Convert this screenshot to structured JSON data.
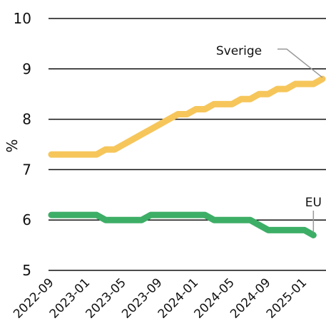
{
  "chart_data": {
    "type": "line",
    "y_label": "%",
    "categories": [
      "2022-09",
      null,
      null,
      null,
      "2023-01",
      null,
      null,
      null,
      "2023-05",
      null,
      null,
      null,
      "2023-09",
      null,
      null,
      null,
      "2024-01",
      null,
      null,
      null,
      "2024-05",
      null,
      null,
      null,
      "2024-09",
      null,
      null,
      null,
      "2025-01",
      null,
      null
    ],
    "series": [
      {
        "name": "Sverige",
        "color": "#f6c65b",
        "values": [
          7.3,
          7.3,
          7.3,
          7.3,
          7.3,
          7.3,
          7.4,
          7.4,
          7.5,
          7.6,
          7.7,
          7.8,
          7.9,
          8.0,
          8.1,
          8.1,
          8.2,
          8.2,
          8.3,
          8.3,
          8.3,
          8.4,
          8.4,
          8.5,
          8.5,
          8.6,
          8.6,
          8.7,
          8.7,
          8.7,
          8.8
        ]
      },
      {
        "name": "EU",
        "color": "#3dae66",
        "values": [
          6.1,
          6.1,
          6.1,
          6.1,
          6.1,
          6.1,
          6.0,
          6.0,
          6.0,
          6.0,
          6.0,
          6.1,
          6.1,
          6.1,
          6.1,
          6.1,
          6.1,
          6.1,
          6.0,
          6.0,
          6.0,
          6.0,
          6.0,
          5.9,
          5.8,
          5.8,
          5.8,
          5.8,
          5.8,
          5.7,
          null
        ]
      }
    ],
    "ylim": [
      5,
      10
    ],
    "yticks": [
      5,
      6,
      7,
      8,
      9,
      10
    ],
    "grid": true
  }
}
